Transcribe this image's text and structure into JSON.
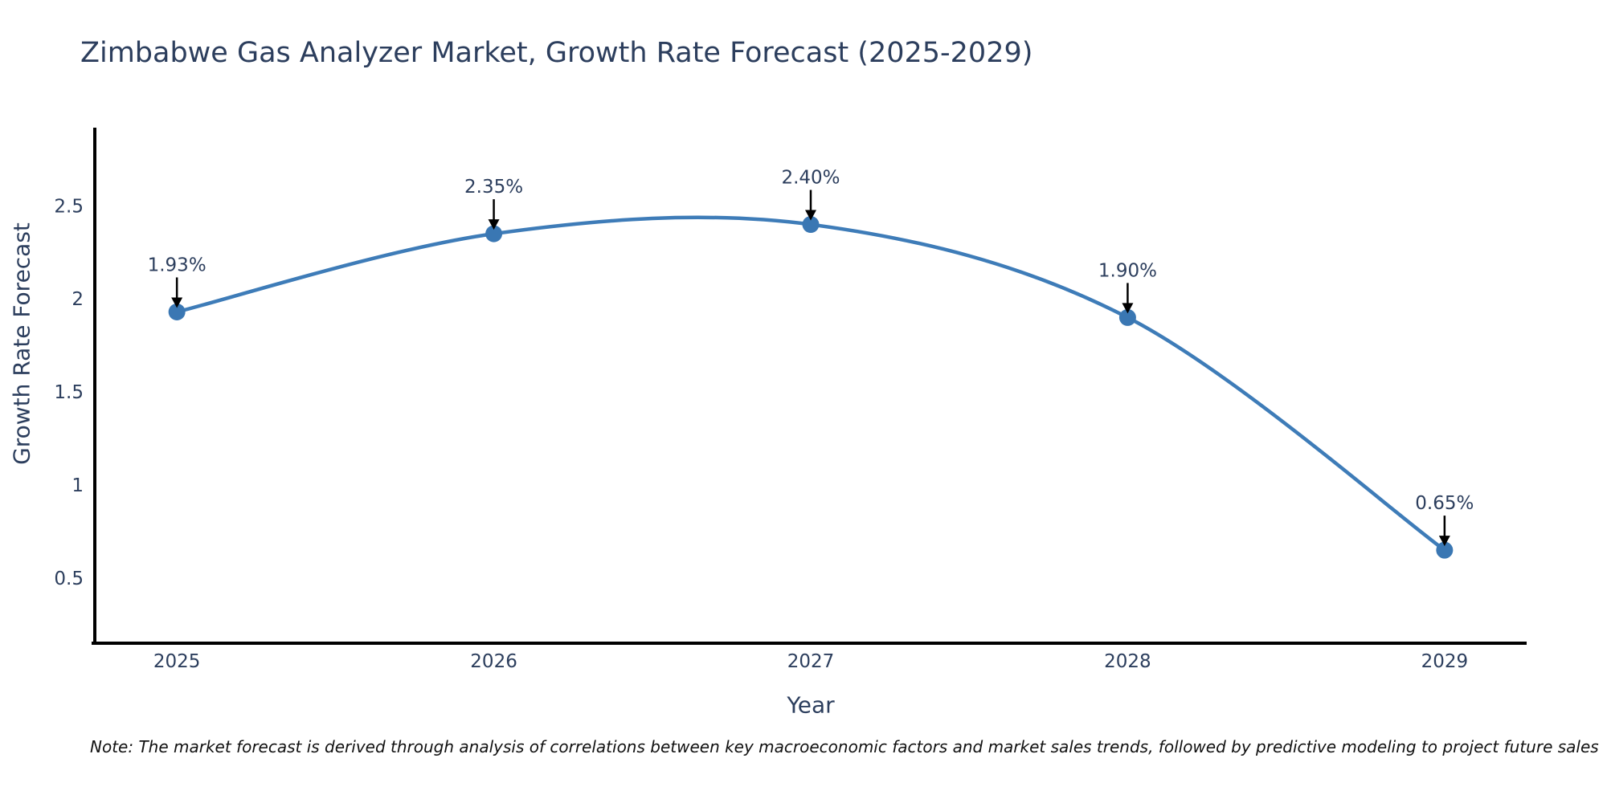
{
  "note": "Note: The market forecast is derived through analysis of correlations between key macroeconomic factors and market sales trends, followed by predictive modeling to project future sales",
  "chart_data": {
    "type": "line",
    "line_shape": "spline",
    "title": "Zimbabwe Gas Analyzer Market, Growth Rate Forecast (2025-2029)",
    "xlabel": "Year",
    "ylabel": "Growth Rate Forecast",
    "x": [
      2025,
      2026,
      2027,
      2028,
      2029
    ],
    "values": [
      1.93,
      2.35,
      2.4,
      1.9,
      0.65
    ],
    "point_labels": [
      "1.93%",
      "2.35%",
      "2.40%",
      "1.90%",
      "0.65%"
    ],
    "yticks": [
      0.5,
      1,
      1.5,
      2,
      2.5
    ],
    "ytick_labels": [
      "0.5",
      "1",
      "1.5",
      "2",
      "2.5"
    ],
    "ylim": [
      0.15,
      2.92
    ],
    "xlim": [
      2024.741,
      2029.259
    ],
    "grid": false,
    "legend": "none",
    "colors": {
      "line": "#3e7cb8",
      "marker": "#3a77b3",
      "axis": "#000000",
      "text": "#2c3e5d",
      "annotation_arrow": "#000000",
      "background": "#ffffff"
    }
  }
}
